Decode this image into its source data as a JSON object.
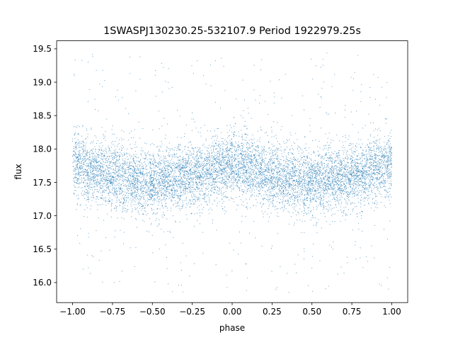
{
  "chart_data": {
    "type": "scatter",
    "title": "1SWASPJ130230.25-532107.9 Period 1922979.25s",
    "xlabel": "phase",
    "ylabel": "flux",
    "xlim": [
      -1.1,
      1.1
    ],
    "ylim": [
      15.7,
      19.62
    ],
    "xticks": [
      -1.0,
      -0.75,
      -0.5,
      -0.25,
      0.0,
      0.25,
      0.5,
      0.75,
      1.0
    ],
    "xtick_labels": [
      "−1.00",
      "−0.75",
      "−0.50",
      "−0.25",
      "0.00",
      "0.25",
      "0.50",
      "0.75",
      "1.00"
    ],
    "yticks": [
      16.0,
      16.5,
      17.0,
      17.5,
      18.0,
      18.5,
      19.0,
      19.5
    ],
    "ytick_labels": [
      "16.0",
      "16.5",
      "17.0",
      "17.5",
      "18.0",
      "18.5",
      "19.0",
      "19.5"
    ],
    "grid": false,
    "marker_color": "#1f77b4",
    "series": [
      {
        "phase_range": [
          -1.0,
          1.0
        ],
        "flux_core_range": [
          17.2,
          18.3
        ],
        "flux_mean_profile": [
          {
            "x": -1.0,
            "y": 17.78
          },
          {
            "x": -0.75,
            "y": 17.6
          },
          {
            "x": -0.5,
            "y": 17.5
          },
          {
            "x": -0.25,
            "y": 17.6
          },
          {
            "x": 0.0,
            "y": 17.78
          },
          {
            "x": 0.25,
            "y": 17.6
          },
          {
            "x": 0.5,
            "y": 17.5
          },
          {
            "x": 0.75,
            "y": 17.6
          },
          {
            "x": 1.0,
            "y": 17.78
          }
        ],
        "flux_outlier_range": [
          15.85,
          19.45
        ]
      }
    ]
  }
}
